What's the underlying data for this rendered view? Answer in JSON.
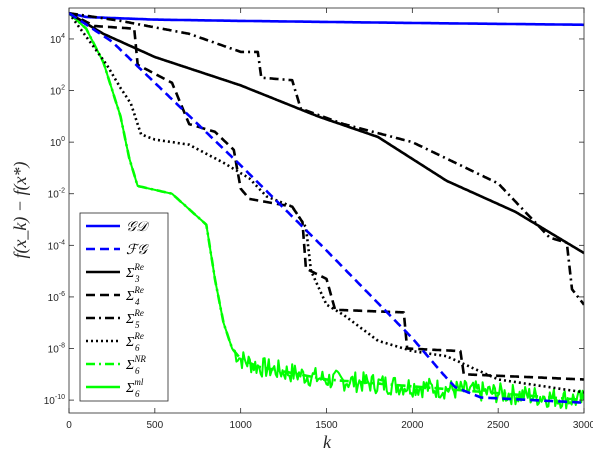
{
  "chart_data": {
    "type": "line",
    "title": "",
    "xlabel": "k",
    "ylabel": "f(x_k) − f(x*)",
    "xlim": [
      0,
      3000
    ],
    "ylim_log10": [
      -10.5,
      5.2
    ],
    "yscale": "log",
    "grid": false,
    "legend_placement": "bottom-left",
    "x_ticks": [
      {
        "v": 0,
        "label": "0"
      },
      {
        "v": 500,
        "label": "500"
      },
      {
        "v": 1000,
        "label": "1000"
      },
      {
        "v": 1500,
        "label": "1500"
      },
      {
        "v": 2000,
        "label": "2000"
      },
      {
        "v": 2500,
        "label": "2500"
      },
      {
        "v": 3000,
        "label": "3000"
      }
    ],
    "y_ticks": [
      {
        "exp": 4,
        "base": "10",
        "sup": "4"
      },
      {
        "exp": 2,
        "base": "10",
        "sup": "2"
      },
      {
        "exp": 0,
        "base": "10",
        "sup": "0"
      },
      {
        "exp": -2,
        "base": "10",
        "sup": "-2"
      },
      {
        "exp": -4,
        "base": "10",
        "sup": "-4"
      },
      {
        "exp": -6,
        "base": "10",
        "sup": "-6"
      },
      {
        "exp": -8,
        "base": "10",
        "sup": "-8"
      },
      {
        "exp": -10,
        "base": "10",
        "sup": "-10"
      }
    ],
    "series": [
      {
        "name": "GD",
        "label_main": "𝒢𝒟",
        "sub": "",
        "sup": "",
        "color": "#0000ff",
        "dash": "solid",
        "noise": 0,
        "points": [
          [
            0,
            5.0
          ],
          [
            100,
            4.85
          ],
          [
            500,
            4.75
          ],
          [
            1000,
            4.7
          ],
          [
            2000,
            4.62
          ],
          [
            3000,
            4.55
          ]
        ]
      },
      {
        "name": "FG",
        "label_main": "ℱ𝒢",
        "sub": "",
        "sup": "",
        "color": "#0000ff",
        "dash": "dash",
        "noise": 0,
        "points": [
          [
            0,
            5.0
          ],
          [
            250,
            3.9
          ],
          [
            1000,
            -0.9
          ],
          [
            1500,
            -4.2
          ],
          [
            2000,
            -7.6
          ],
          [
            2180,
            -9.0
          ],
          [
            2250,
            -9.5
          ],
          [
            2400,
            -9.9
          ],
          [
            3000,
            -10.1
          ]
        ]
      },
      {
        "name": "Σ3^Re",
        "label_main": "Σ",
        "sub": "3",
        "sup": "Re",
        "color": "#000000",
        "dash": "solid",
        "noise": 0,
        "points": [
          [
            0,
            5.0
          ],
          [
            200,
            4.2
          ],
          [
            500,
            3.3
          ],
          [
            1000,
            2.2
          ],
          [
            1450,
            1.0
          ],
          [
            1800,
            0.2
          ],
          [
            2200,
            -1.5
          ],
          [
            2600,
            -2.7
          ],
          [
            3000,
            -4.3
          ]
        ]
      },
      {
        "name": "Σ4^Re",
        "label_main": "Σ",
        "sub": "4",
        "sup": "Re",
        "color": "#000000",
        "dash": "dash",
        "noise": 0,
        "points": [
          [
            0,
            5.0
          ],
          [
            150,
            4.5
          ],
          [
            380,
            4.4
          ],
          [
            400,
            3.0
          ],
          [
            600,
            2.3
          ],
          [
            700,
            0.7
          ],
          [
            850,
            0.4
          ],
          [
            960,
            -0.3
          ],
          [
            1000,
            -1.8
          ],
          [
            1050,
            -2.2
          ],
          [
            1300,
            -2.5
          ],
          [
            1360,
            -3.1
          ],
          [
            1380,
            -4.9
          ],
          [
            1500,
            -5.3
          ],
          [
            1550,
            -6.5
          ],
          [
            1950,
            -6.6
          ],
          [
            1970,
            -8.0
          ],
          [
            2280,
            -8.1
          ],
          [
            2300,
            -9.0
          ],
          [
            3000,
            -9.2
          ]
        ]
      },
      {
        "name": "Σ5^Re",
        "label_main": "Σ",
        "sub": "5",
        "sup": "Re",
        "color": "#000000",
        "dash": "dashdot",
        "noise": 0,
        "points": [
          [
            0,
            5.0
          ],
          [
            300,
            4.7
          ],
          [
            700,
            4.2
          ],
          [
            1000,
            3.5
          ],
          [
            1100,
            3.5
          ],
          [
            1120,
            2.5
          ],
          [
            1300,
            2.4
          ],
          [
            1350,
            1.3
          ],
          [
            1600,
            0.7
          ],
          [
            2000,
            0.0
          ],
          [
            2500,
            -1.6
          ],
          [
            2800,
            -3.7
          ],
          [
            2900,
            -3.9
          ],
          [
            2930,
            -5.7
          ],
          [
            3000,
            -6.3
          ]
        ]
      },
      {
        "name": "Σ6^Re",
        "label_main": "Σ",
        "sub": "6",
        "sup": "Re",
        "color": "#000000",
        "dash": "dot",
        "noise": 0,
        "points": [
          [
            0,
            5.0
          ],
          [
            220,
            3.0
          ],
          [
            300,
            2.1
          ],
          [
            360,
            1.5
          ],
          [
            420,
            0.3
          ],
          [
            500,
            0.1
          ],
          [
            700,
            -0.1
          ],
          [
            900,
            -0.8
          ],
          [
            1050,
            -1.4
          ],
          [
            1150,
            -2.1
          ],
          [
            1300,
            -2.5
          ],
          [
            1380,
            -3.3
          ],
          [
            1410,
            -5.0
          ],
          [
            1500,
            -6.3
          ],
          [
            1600,
            -6.7
          ],
          [
            1700,
            -7.2
          ],
          [
            1800,
            -7.7
          ],
          [
            2000,
            -8.1
          ],
          [
            2200,
            -8.3
          ],
          [
            2500,
            -9.2
          ],
          [
            3000,
            -9.7
          ]
        ]
      },
      {
        "name": "Σ6^NR",
        "label_main": "Σ",
        "sub": "6",
        "sup": "NR",
        "color": "#00ff00",
        "dash": "dashdot",
        "noise": 0,
        "points": [
          [
            0,
            5.0
          ],
          [
            100,
            4.4
          ],
          [
            200,
            3.1
          ],
          [
            300,
            1.0
          ],
          [
            350,
            -0.6
          ],
          [
            400,
            -1.7
          ],
          [
            600,
            -2.0
          ],
          [
            700,
            -2.6
          ],
          [
            800,
            -3.2
          ],
          [
            850,
            -5.3
          ],
          [
            900,
            -7.0
          ],
          [
            950,
            -8.0
          ],
          [
            1000,
            -8.4
          ],
          [
            1100,
            -8.7
          ],
          [
            1500,
            -9.2
          ],
          [
            3000,
            -10.0
          ]
        ]
      },
      {
        "name": "Σ6^ml",
        "label_main": "Σ",
        "sub": "6",
        "sup": "ml",
        "color": "#00ff00",
        "dash": "solid",
        "noise": 0.4,
        "points": [
          [
            0,
            5.0
          ],
          [
            100,
            4.4
          ],
          [
            200,
            3.1
          ],
          [
            300,
            1.0
          ],
          [
            350,
            -0.6
          ],
          [
            400,
            -1.7
          ],
          [
            600,
            -2.0
          ],
          [
            700,
            -2.6
          ],
          [
            800,
            -3.2
          ],
          [
            850,
            -5.3
          ],
          [
            900,
            -7.0
          ],
          [
            950,
            -8.0
          ],
          [
            1000,
            -8.4
          ],
          [
            1100,
            -8.7
          ],
          [
            1500,
            -9.2
          ],
          [
            3000,
            -10.0
          ]
        ]
      }
    ]
  }
}
